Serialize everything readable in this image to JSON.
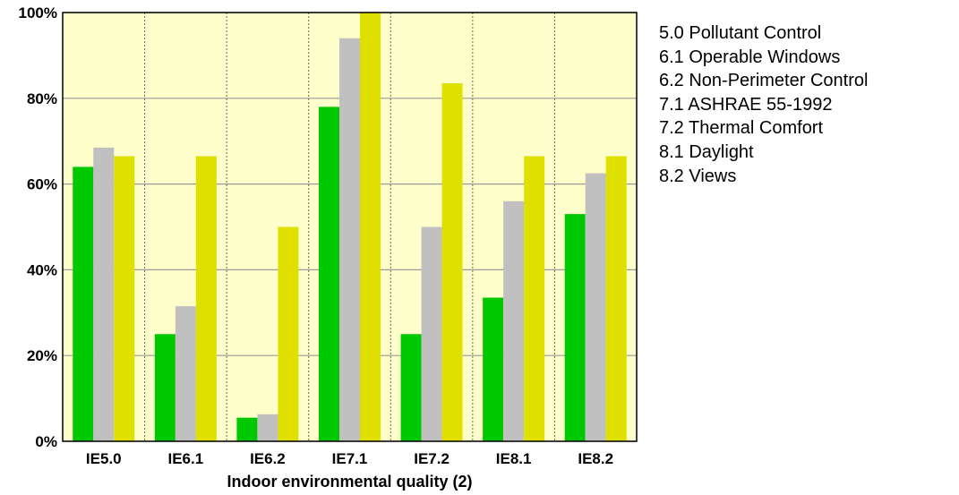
{
  "chart_data": {
    "type": "bar",
    "categories": [
      "IE5.0",
      "IE6.1",
      "IE6.2",
      "IE7.1",
      "IE7.2",
      "IE8.1",
      "IE8.2"
    ],
    "series": [
      {
        "values": [
          64,
          25,
          5.5,
          78,
          25,
          33.5,
          53
        ],
        "color": "#00c800"
      },
      {
        "values": [
          68.5,
          31.5,
          6.3,
          94,
          50,
          56,
          62.5
        ],
        "color": "#c0c0c0"
      },
      {
        "values": [
          66.5,
          66.5,
          50,
          100,
          83.5,
          66.5,
          66.5
        ],
        "color": "#e0e000"
      }
    ],
    "xlabel": "Indoor environmental quality (2)",
    "ylabel": "",
    "ylim": [
      0,
      100
    ],
    "yticks": [
      0,
      20,
      40,
      60,
      80,
      100
    ],
    "ytick_labels": [
      "0%",
      "20%",
      "40%",
      "60%",
      "80%",
      "100%"
    ],
    "grid": true,
    "plot_background": "#ffffcc",
    "legend_placement": "right",
    "legend_entries": [
      "5.0 Pollutant Control",
      "6.1 Operable Windows",
      "6.2 Non-Perimeter Control",
      "7.1 ASHRAE 55-1992",
      "7.2 Thermal Comfort",
      "8.1 Daylight",
      "8.2 Views"
    ]
  }
}
